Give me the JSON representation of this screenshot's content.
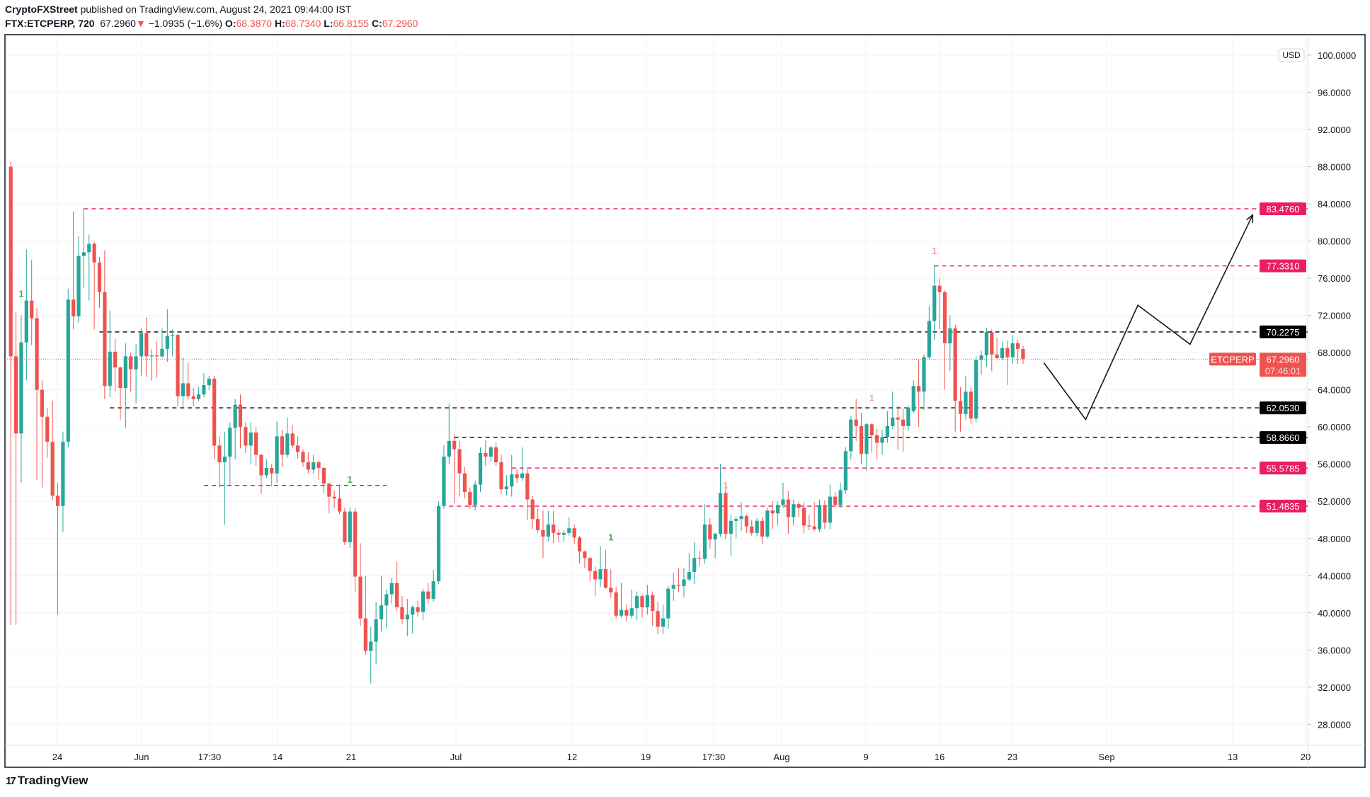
{
  "header": {
    "author": "CryptoFXStreet",
    "published": "published on TradingView.com, August 24, 2021 09:44:00 IST",
    "symbol": "FTX:ETCPERP, 720",
    "last": "67.2960",
    "change": "−1.0935 (−1.6%)",
    "o_label": "O:",
    "o": "68.3870",
    "h_label": "H:",
    "h": "68.7340",
    "l_label": "L:",
    "l": "66.8155",
    "c_label": "C:",
    "c": "67.2960"
  },
  "footer": {
    "brand": "TradingView"
  },
  "colors": {
    "up": "#26a69a",
    "down": "#ef5350",
    "pink": "#e91e63",
    "black": "#000000",
    "grid": "#f0f3fa"
  },
  "chart_data": {
    "type": "candlestick",
    "currency": "USD",
    "ylim": [
      26,
      102
    ],
    "y_ticks": [
      28,
      32,
      36,
      40,
      44,
      48,
      52,
      56,
      60,
      64,
      68,
      72,
      76,
      80,
      84,
      88,
      92,
      96,
      100
    ],
    "y_tick_labels": [
      "28.0000",
      "32.0000",
      "36.0000",
      "40.0000",
      "44.0000",
      "48.0000",
      "52.0000",
      "56.0000",
      "60.0000",
      "64.0000",
      "68.0000",
      "72.0000",
      "76.0000",
      "80.0000",
      "84.0000",
      "88.0000",
      "92.0000",
      "96.0000",
      "100.0000"
    ],
    "x_tick_labels": [
      "24",
      "Jun",
      "17:30",
      "14",
      "21",
      "Jul",
      "12",
      "19",
      "17:30",
      "Aug",
      "9",
      "16",
      "23",
      "Sep",
      "13",
      "20"
    ],
    "candles_ohlc": [
      [
        88.0,
        88.5,
        38.7,
        67.6
      ],
      [
        67.6,
        72.4,
        38.7,
        59.3
      ],
      [
        59.3,
        72.0,
        54.0,
        69.1
      ],
      [
        69.1,
        79.1,
        65.0,
        73.6
      ],
      [
        73.6,
        78.0,
        68.8,
        71.7
      ],
      [
        71.7,
        72.8,
        54.3,
        64.0
      ],
      [
        64.0,
        65.0,
        53.5,
        61.1
      ],
      [
        61.1,
        62.0,
        56.7,
        58.4
      ],
      [
        58.4,
        62.8,
        52.1,
        52.6
      ],
      [
        52.6,
        54.0,
        39.8,
        51.5
      ],
      [
        51.5,
        59.5,
        48.7,
        58.4
      ],
      [
        58.4,
        74.9,
        57.8,
        73.7
      ],
      [
        73.7,
        83.2,
        70.5,
        71.9
      ],
      [
        71.9,
        80.5,
        71.2,
        78.4
      ],
      [
        78.4,
        83.5,
        75.0,
        78.8
      ],
      [
        78.8,
        80.7,
        73.6,
        79.7
      ],
      [
        79.7,
        79.9,
        70.5,
        77.7
      ],
      [
        77.7,
        78.3,
        72.8,
        74.5
      ],
      [
        74.5,
        79.0,
        63.0,
        64.4
      ],
      [
        64.4,
        72.5,
        63.2,
        68.1
      ],
      [
        68.1,
        69.5,
        63.8,
        66.4
      ],
      [
        66.4,
        66.5,
        60.8,
        64.2
      ],
      [
        64.2,
        69.0,
        59.9,
        67.6
      ],
      [
        67.6,
        68.0,
        63.8,
        66.2
      ],
      [
        66.2,
        68.9,
        62.5,
        67.6
      ],
      [
        67.6,
        70.6,
        65.5,
        70.1
      ],
      [
        70.1,
        71.8,
        65.4,
        67.6
      ],
      [
        67.6,
        68.4,
        65.0,
        67.7
      ],
      [
        67.7,
        69.2,
        65.3,
        67.6
      ],
      [
        67.6,
        70.6,
        67.4,
        68.4
      ],
      [
        68.4,
        72.7,
        67.0,
        69.8
      ],
      [
        69.8,
        70.5,
        67.6,
        69.9
      ],
      [
        69.9,
        70.0,
        62.2,
        63.3
      ],
      [
        63.3,
        67.5,
        62.2,
        64.7
      ],
      [
        64.7,
        66.9,
        63.0,
        63.3
      ],
      [
        63.3,
        64.2,
        62.2,
        63.0
      ],
      [
        63.0,
        64.3,
        62.8,
        63.5
      ],
      [
        63.5,
        65.8,
        63.2,
        64.5
      ],
      [
        64.5,
        65.5,
        64.0,
        65.2
      ],
      [
        65.2,
        65.5,
        56.5,
        58.0
      ],
      [
        58.0,
        59.0,
        53.5,
        56.2
      ],
      [
        56.2,
        59.5,
        49.5,
        56.8
      ],
      [
        56.8,
        60.5,
        53.8,
        59.9
      ],
      [
        59.9,
        63.0,
        56.5,
        62.4
      ],
      [
        62.4,
        63.5,
        57.7,
        60.0
      ],
      [
        60.0,
        60.5,
        57.2,
        58.0
      ],
      [
        58.0,
        60.5,
        56.0,
        59.4
      ],
      [
        59.4,
        60.0,
        55.8,
        57.0
      ],
      [
        57.0,
        57.1,
        52.8,
        54.8
      ],
      [
        54.8,
        56.5,
        54.5,
        55.6
      ],
      [
        55.6,
        56.0,
        53.6,
        55.0
      ],
      [
        55.0,
        60.6,
        54.0,
        59.0
      ],
      [
        59.0,
        59.7,
        55.7,
        57.0
      ],
      [
        57.0,
        61.0,
        56.7,
        59.3
      ],
      [
        59.3,
        60.2,
        57.7,
        58.0
      ],
      [
        58.0,
        59.0,
        56.6,
        57.3
      ],
      [
        57.3,
        57.6,
        55.7,
        56.2
      ],
      [
        56.2,
        57.3,
        55.0,
        55.4
      ],
      [
        55.4,
        57.0,
        55.0,
        56.2
      ],
      [
        56.2,
        56.4,
        54.3,
        55.6
      ],
      [
        55.6,
        55.7,
        52.9,
        53.9
      ],
      [
        53.9,
        54.0,
        50.7,
        52.5
      ],
      [
        52.5,
        53.2,
        51.3,
        52.3
      ],
      [
        52.3,
        53.8,
        50.6,
        50.9
      ],
      [
        50.9,
        51.3,
        47.3,
        47.6
      ],
      [
        47.6,
        51.3,
        47.0,
        50.9
      ],
      [
        50.9,
        51.3,
        42.3,
        43.9
      ],
      [
        43.9,
        47.5,
        38.6,
        39.4
      ],
      [
        39.4,
        44.0,
        35.5,
        35.9
      ],
      [
        35.9,
        38.5,
        32.4,
        36.9
      ],
      [
        36.9,
        41.2,
        34.5,
        39.3
      ],
      [
        39.3,
        44.0,
        38.0,
        40.8
      ],
      [
        40.8,
        42.5,
        38.3,
        42.0
      ],
      [
        42.0,
        43.8,
        41.0,
        43.2
      ],
      [
        43.2,
        45.5,
        40.2,
        40.6
      ],
      [
        40.6,
        41.8,
        38.8,
        39.3
      ],
      [
        39.3,
        41.5,
        37.5,
        39.8
      ],
      [
        39.8,
        40.8,
        37.8,
        40.6
      ],
      [
        40.6,
        41.3,
        39.6,
        40.1
      ],
      [
        40.1,
        42.6,
        39.2,
        42.3
      ],
      [
        42.3,
        43.2,
        41.0,
        41.5
      ],
      [
        41.5,
        44.6,
        41.2,
        43.4
      ],
      [
        43.4,
        52.0,
        43.1,
        51.5
      ],
      [
        51.5,
        58.0,
        51.2,
        56.8
      ],
      [
        56.8,
        62.5,
        56.0,
        58.5
      ],
      [
        58.5,
        59.2,
        51.8,
        57.6
      ],
      [
        57.6,
        58.5,
        52.5,
        55.0
      ],
      [
        55.0,
        55.7,
        52.3,
        53.0
      ],
      [
        53.0,
        53.5,
        51.2,
        51.6
      ],
      [
        51.6,
        54.2,
        51.0,
        53.8
      ],
      [
        53.8,
        57.8,
        53.0,
        57.2
      ],
      [
        57.2,
        58.6,
        55.8,
        56.8
      ],
      [
        56.8,
        58.0,
        56.3,
        57.8
      ],
      [
        57.8,
        58.3,
        55.8,
        56.2
      ],
      [
        56.2,
        57.0,
        52.8,
        53.3
      ],
      [
        53.3,
        54.8,
        52.6,
        53.6
      ],
      [
        53.6,
        57.0,
        52.5,
        54.9
      ],
      [
        54.9,
        55.5,
        54.0,
        54.5
      ],
      [
        54.5,
        57.8,
        54.2,
        55.0
      ],
      [
        55.0,
        55.5,
        50.0,
        52.2
      ],
      [
        52.2,
        52.6,
        49.0,
        50.1
      ],
      [
        50.1,
        51.2,
        48.6,
        48.9
      ],
      [
        48.9,
        51.0,
        45.9,
        48.2
      ],
      [
        48.2,
        51.0,
        47.7,
        49.5
      ],
      [
        49.5,
        51.0,
        47.5,
        48.6
      ],
      [
        48.6,
        49.0,
        47.6,
        48.4
      ],
      [
        48.4,
        48.9,
        47.6,
        48.6
      ],
      [
        48.6,
        50.3,
        48.3,
        49.1
      ],
      [
        49.1,
        49.5,
        47.4,
        48.1
      ],
      [
        48.1,
        48.3,
        45.3,
        46.6
      ],
      [
        46.6,
        46.7,
        44.8,
        45.9
      ],
      [
        45.9,
        46.0,
        43.4,
        44.5
      ],
      [
        44.5,
        45.0,
        41.8,
        43.6
      ],
      [
        43.6,
        47.2,
        42.8,
        44.7
      ],
      [
        44.7,
        46.8,
        42.6,
        42.7
      ],
      [
        42.7,
        44.7,
        41.6,
        42.2
      ],
      [
        42.2,
        42.8,
        39.4,
        39.7
      ],
      [
        39.7,
        43.2,
        39.5,
        40.3
      ],
      [
        40.3,
        40.9,
        39.1,
        39.7
      ],
      [
        39.7,
        42.5,
        39.4,
        40.5
      ],
      [
        40.5,
        42.3,
        39.2,
        41.8
      ],
      [
        41.8,
        42.0,
        39.5,
        40.6
      ],
      [
        40.6,
        43.0,
        39.8,
        41.9
      ],
      [
        41.9,
        42.3,
        38.6,
        40.2
      ],
      [
        40.2,
        41.2,
        37.7,
        38.5
      ],
      [
        38.5,
        40.9,
        37.7,
        39.4
      ],
      [
        39.4,
        42.9,
        38.3,
        42.6
      ],
      [
        42.6,
        44.3,
        41.3,
        43.0
      ],
      [
        43.0,
        44.8,
        42.2,
        42.9
      ],
      [
        42.9,
        44.8,
        41.7,
        43.6
      ],
      [
        43.6,
        46.4,
        43.4,
        44.4
      ],
      [
        44.4,
        47.6,
        43.1,
        45.9
      ],
      [
        45.9,
        46.7,
        45.0,
        45.8
      ],
      [
        45.8,
        51.7,
        45.3,
        49.5
      ],
      [
        49.5,
        50.2,
        46.9,
        47.9
      ],
      [
        47.9,
        48.6,
        45.9,
        48.5
      ],
      [
        48.5,
        56.0,
        48.2,
        52.9
      ],
      [
        52.9,
        53.9,
        47.9,
        48.5
      ],
      [
        48.5,
        50.6,
        46.1,
        49.9
      ],
      [
        49.9,
        50.4,
        48.0,
        50.1
      ],
      [
        50.1,
        51.9,
        48.8,
        50.4
      ],
      [
        50.4,
        50.6,
        48.6,
        49.3
      ],
      [
        49.3,
        50.0,
        48.3,
        48.6
      ],
      [
        48.6,
        50.2,
        48.2,
        49.9
      ],
      [
        49.9,
        50.3,
        47.4,
        48.2
      ],
      [
        48.2,
        51.3,
        48.0,
        51.0
      ],
      [
        51.0,
        52.0,
        49.0,
        50.7
      ],
      [
        50.7,
        52.0,
        49.4,
        51.6
      ],
      [
        51.6,
        54.0,
        51.3,
        52.2
      ],
      [
        52.2,
        53.1,
        48.5,
        50.3
      ],
      [
        50.3,
        52.2,
        49.4,
        51.7
      ],
      [
        51.7,
        51.9,
        50.3,
        51.3
      ],
      [
        51.3,
        51.9,
        48.5,
        49.4
      ],
      [
        49.4,
        50.5,
        48.9,
        49.3
      ],
      [
        49.3,
        51.9,
        48.8,
        49.0
      ],
      [
        49.0,
        52.2,
        48.7,
        51.6
      ],
      [
        51.6,
        52.1,
        49.0,
        49.7
      ],
      [
        49.7,
        53.8,
        49.0,
        52.5
      ],
      [
        52.5,
        53.0,
        51.4,
        51.6
      ],
      [
        51.6,
        54.0,
        51.3,
        53.2
      ],
      [
        53.2,
        57.8,
        52.8,
        57.4
      ],
      [
        57.4,
        61.2,
        56.5,
        60.8
      ],
      [
        60.8,
        63.0,
        58.5,
        60.1
      ],
      [
        60.1,
        61.5,
        56.0,
        57.1
      ],
      [
        57.1,
        60.4,
        55.3,
        60.3
      ],
      [
        60.3,
        60.4,
        57.2,
        59.1
      ],
      [
        59.1,
        59.8,
        56.5,
        58.3
      ],
      [
        58.3,
        59.7,
        57.0,
        58.9
      ],
      [
        58.9,
        61.7,
        58.3,
        60.1
      ],
      [
        60.1,
        63.8,
        59.8,
        61.0
      ],
      [
        61.0,
        62.3,
        57.5,
        60.8
      ],
      [
        60.8,
        62.0,
        57.3,
        60.1
      ],
      [
        60.1,
        62.3,
        59.6,
        62.1
      ],
      [
        61.7,
        65.0,
        61.5,
        64.4
      ],
      [
        64.4,
        67.3,
        60.0,
        63.8
      ],
      [
        63.8,
        67.8,
        61.8,
        67.5
      ],
      [
        67.5,
        73.0,
        67.2,
        71.4
      ],
      [
        71.4,
        77.4,
        69.4,
        75.2
      ],
      [
        75.2,
        76.0,
        70.5,
        74.5
      ],
      [
        74.5,
        74.7,
        64.0,
        69.0
      ],
      [
        69.0,
        72.0,
        66.0,
        70.6
      ],
      [
        70.6,
        71.0,
        59.5,
        62.8
      ],
      [
        62.8,
        64.3,
        59.5,
        61.4
      ],
      [
        61.4,
        65.5,
        60.8,
        63.8
      ],
      [
        63.8,
        64.3,
        60.3,
        60.9
      ],
      [
        60.9,
        67.6,
        60.5,
        67.2
      ],
      [
        67.2,
        68.2,
        65.6,
        67.7
      ],
      [
        67.7,
        70.7,
        66.5,
        70.2
      ],
      [
        70.2,
        70.5,
        66.0,
        67.8
      ],
      [
        67.8,
        69.6,
        67.3,
        67.4
      ],
      [
        67.4,
        69.2,
        67.2,
        68.5
      ],
      [
        68.5,
        69.3,
        64.5,
        67.5
      ],
      [
        67.5,
        69.9,
        66.8,
        69.0
      ],
      [
        69.0,
        69.4,
        66.8,
        68.4
      ],
      [
        68.4,
        68.734,
        66.8155,
        67.296
      ]
    ],
    "levels": [
      {
        "price": 83.476,
        "label": "83.4760",
        "color": "pink",
        "from_candle": 14
      },
      {
        "price": 77.331,
        "label": "77.3310",
        "color": "pink",
        "from_candle": 177
      },
      {
        "price": 70.2275,
        "label": "70.2275",
        "color": "black",
        "from_candle": 17
      },
      {
        "price": 62.053,
        "label": "62.0530",
        "color": "black",
        "from_candle": 19
      },
      {
        "price": 58.866,
        "label": "58.8660",
        "color": "black",
        "from_candle": 85
      },
      {
        "price": 55.5785,
        "label": "55.5785",
        "color": "pink",
        "from_candle": 96
      },
      {
        "price": 51.4835,
        "label": "51.4835",
        "color": "pink",
        "from_candle": 84
      }
    ],
    "support_segment": {
      "price": 53.7,
      "from_candle": 37,
      "to_candle": 72
    },
    "current": {
      "symbol": "ETCPERP",
      "price": 67.296,
      "label": "67.2960",
      "countdown": "07:46:01"
    },
    "markers": [
      {
        "candle": 2,
        "label": "1",
        "color": "#4caf50",
        "price": 74.0
      },
      {
        "candle": 65,
        "label": "1",
        "color": "#4caf50",
        "price": 54.0
      },
      {
        "candle": 115,
        "label": "1",
        "color": "#4caf50",
        "price": 47.8
      },
      {
        "candle": 137,
        "label": "1",
        "color": "#f7a1a1",
        "price": 53.4
      },
      {
        "candle": 165,
        "label": "1",
        "color": "#f7a1a1",
        "price": 62.8
      },
      {
        "candle": 177,
        "label": "1",
        "color": "#f7a1a1",
        "price": 78.6
      }
    ],
    "projection": [
      {
        "candles_after_last": 4,
        "price": 66.9
      },
      {
        "candles_after_last": 12,
        "price": 60.8
      },
      {
        "candles_after_last": 22,
        "price": 73.1
      },
      {
        "candles_after_last": 32,
        "price": 68.9
      },
      {
        "candles_after_last": 44,
        "price": 82.8
      }
    ]
  }
}
